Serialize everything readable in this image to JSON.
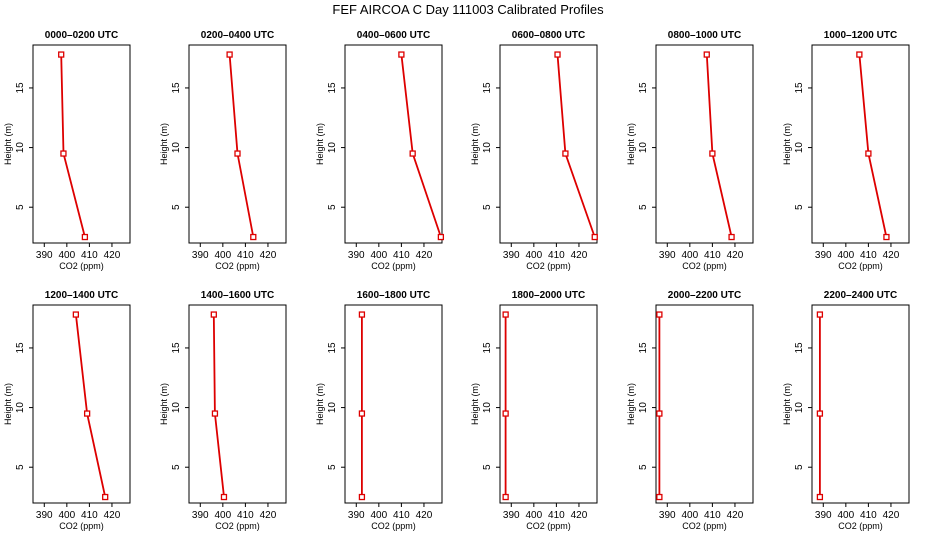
{
  "figure_title": "FEF AIRCOA C  Day 111003  Calibrated Profiles",
  "chart_data": {
    "type": "line",
    "xlabel": "CO2 (ppm)",
    "ylabel": "Height (m)",
    "xlim": [
      385,
      428
    ],
    "ylim": [
      2.0,
      18.6
    ],
    "xticks": [
      390,
      400,
      410,
      420
    ],
    "yticks": [
      5,
      10,
      15
    ],
    "series_color": "#dd0000",
    "panels": [
      {
        "title": "0000–0200 UTC",
        "points": [
          {
            "co2": 397.5,
            "height": 17.8
          },
          {
            "co2": 398.5,
            "height": 9.5
          },
          {
            "co2": 408.0,
            "height": 2.5
          }
        ]
      },
      {
        "title": "0200–0400 UTC",
        "points": [
          {
            "co2": 403.0,
            "height": 17.8
          },
          {
            "co2": 406.5,
            "height": 9.5
          },
          {
            "co2": 413.5,
            "height": 2.5
          }
        ]
      },
      {
        "title": "0400–0600 UTC",
        "points": [
          {
            "co2": 410.0,
            "height": 17.8
          },
          {
            "co2": 415.0,
            "height": 9.5
          },
          {
            "co2": 427.5,
            "height": 2.5
          }
        ]
      },
      {
        "title": "0600–0800 UTC",
        "points": [
          {
            "co2": 410.5,
            "height": 17.8
          },
          {
            "co2": 414.0,
            "height": 9.5
          },
          {
            "co2": 427.0,
            "height": 2.5
          }
        ]
      },
      {
        "title": "0800–1000 UTC",
        "points": [
          {
            "co2": 407.5,
            "height": 17.8
          },
          {
            "co2": 410.0,
            "height": 9.5
          },
          {
            "co2": 418.5,
            "height": 2.5
          }
        ]
      },
      {
        "title": "1000–1200 UTC",
        "points": [
          {
            "co2": 406.0,
            "height": 17.8
          },
          {
            "co2": 410.0,
            "height": 9.5
          },
          {
            "co2": 418.0,
            "height": 2.5
          }
        ]
      },
      {
        "title": "1200–1400 UTC",
        "points": [
          {
            "co2": 404.0,
            "height": 17.8
          },
          {
            "co2": 409.0,
            "height": 9.5
          },
          {
            "co2": 417.0,
            "height": 2.5
          }
        ]
      },
      {
        "title": "1400–1600 UTC",
        "points": [
          {
            "co2": 396.0,
            "height": 17.8
          },
          {
            "co2": 396.5,
            "height": 9.5
          },
          {
            "co2": 400.5,
            "height": 2.5
          }
        ]
      },
      {
        "title": "1600–1800 UTC",
        "points": [
          {
            "co2": 392.5,
            "height": 17.8
          },
          {
            "co2": 392.5,
            "height": 9.5
          },
          {
            "co2": 392.5,
            "height": 2.5
          }
        ]
      },
      {
        "title": "1800–2000 UTC",
        "points": [
          {
            "co2": 387.5,
            "height": 17.8
          },
          {
            "co2": 387.5,
            "height": 9.5
          },
          {
            "co2": 387.5,
            "height": 2.5
          }
        ]
      },
      {
        "title": "2000–2200 UTC",
        "points": [
          {
            "co2": 386.5,
            "height": 17.8
          },
          {
            "co2": 386.5,
            "height": 9.5
          },
          {
            "co2": 386.5,
            "height": 2.5
          }
        ]
      },
      {
        "title": "2200–2400 UTC",
        "points": [
          {
            "co2": 388.5,
            "height": 17.8
          },
          {
            "co2": 388.5,
            "height": 9.5
          },
          {
            "co2": 388.5,
            "height": 2.5
          }
        ]
      }
    ]
  }
}
